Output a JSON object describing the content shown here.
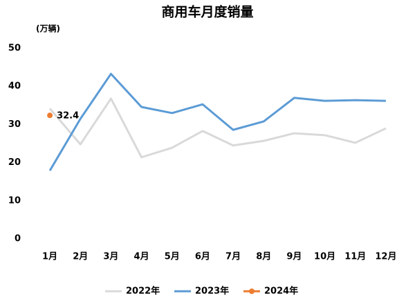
{
  "chart_data": {
    "type": "line",
    "title": "商用车月度销量",
    "unit_label": "(万辆)",
    "categories": [
      "1月",
      "2月",
      "3月",
      "4月",
      "5月",
      "6月",
      "7月",
      "8月",
      "9月",
      "10月",
      "11月",
      "12月"
    ],
    "series": [
      {
        "name": "2022年",
        "color": "#d9d9d9",
        "values": [
          34.2,
          24.8,
          36.8,
          21.4,
          23.9,
          28.3,
          24.5,
          25.7,
          27.7,
          27.2,
          25.2,
          29.0
        ]
      },
      {
        "name": "2023年",
        "color": "#5b9bd5",
        "values": [
          17.9,
          31.5,
          43.3,
          34.6,
          33.0,
          35.3,
          28.6,
          30.8,
          37.0,
          36.2,
          36.4,
          36.2
        ]
      },
      {
        "name": "2024年",
        "color": "#ed7d31",
        "values": [
          32.4,
          null,
          null,
          null,
          null,
          null,
          null,
          null,
          null,
          null,
          null,
          null
        ],
        "show_value_labels": true
      }
    ],
    "ylim": [
      0,
      50
    ],
    "yticks": [
      0,
      10,
      20,
      30,
      40,
      50
    ],
    "grid": false,
    "legend": "bottom"
  }
}
